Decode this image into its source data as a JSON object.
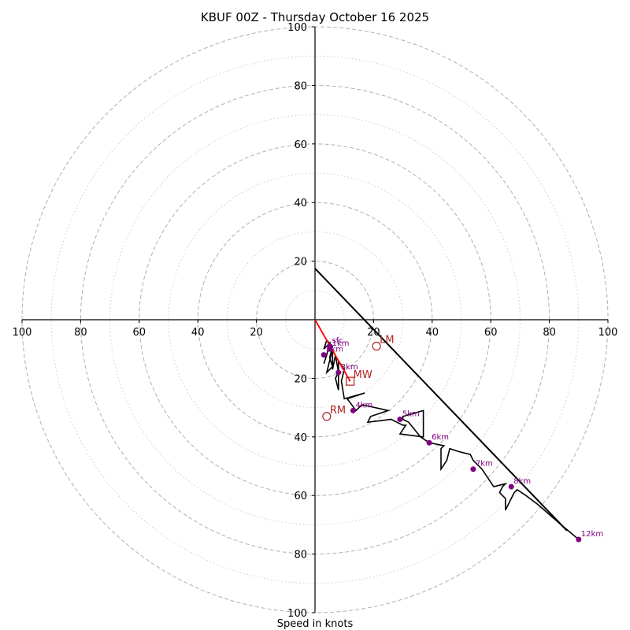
{
  "chart_data": {
    "type": "line",
    "title": "KBUF 00Z - Thursday October 16 2025",
    "xlabel": "Speed in knots",
    "ylabel": "",
    "xlim": [
      -100,
      100
    ],
    "ylim": [
      -100,
      100
    ],
    "units": "knots",
    "colors": {
      "hodograph": "#000000",
      "shear_vector": "#ff0000",
      "storm_motion": "#b22222",
      "height_marker": "#800080",
      "ring_major": "#b0b0b0",
      "ring_minor": "#cccccc",
      "axis": "#000000"
    },
    "rings": {
      "major": [
        20,
        40,
        60,
        80,
        100
      ],
      "minor": [
        10,
        30,
        50,
        70,
        90
      ]
    },
    "axis_ticks": {
      "left": [
        "100",
        "80",
        "60",
        "40",
        "20"
      ],
      "right": [
        "20",
        "40",
        "60",
        "80",
        "100"
      ],
      "top": [
        "100",
        "80",
        "60",
        "40",
        "20"
      ],
      "bottom": [
        "20",
        "40",
        "60",
        "80",
        "100"
      ],
      "left_values": [
        -100,
        -80,
        -60,
        -40,
        -20
      ],
      "right_values": [
        20,
        40,
        60,
        80,
        100
      ],
      "top_values": [
        100,
        80,
        60,
        40,
        20
      ],
      "bottom_values": [
        -20,
        -40,
        -60,
        -80,
        -100
      ]
    },
    "series": [
      {
        "name": "hodograph trace",
        "u": [
          3,
          4,
          5,
          3,
          4,
          6,
          5,
          6,
          4,
          5,
          6,
          6,
          7,
          8,
          7,
          8,
          8,
          10,
          9,
          10,
          17,
          11,
          14,
          16,
          25,
          19,
          18,
          26,
          30,
          31,
          29,
          37,
          37,
          30,
          30,
          32,
          36,
          39,
          44,
          43,
          43,
          45,
          46,
          49,
          53,
          54,
          57,
          59,
          61,
          65,
          64,
          63,
          65,
          65,
          68,
          69,
          72,
          76,
          84,
          90
        ],
        "v": [
          -15,
          -12,
          -8,
          -10,
          -7,
          -9,
          -13,
          -16,
          -18,
          -14,
          -10,
          -17,
          -12,
          -18,
          -20,
          -24,
          -14,
          -17,
          -21,
          -27,
          -25,
          -27,
          -31,
          -29,
          -31,
          -33,
          -35,
          -34,
          -36,
          -36,
          -39,
          -40,
          -31,
          -33,
          -34,
          -35,
          -40,
          -42,
          -43,
          -44,
          -51,
          -48,
          -44,
          -45,
          -46,
          -48,
          -51,
          -54,
          -57,
          -56,
          -57,
          -59,
          -61,
          -65,
          -59,
          -58,
          -60,
          -63,
          -70,
          -75
        ]
      }
    ],
    "height_markers": [
      {
        "label": "sfc",
        "u": 5,
        "v": -9
      },
      {
        "label": "1km",
        "u": 5,
        "v": -10
      },
      {
        "label": "2km",
        "u": 3,
        "v": -12
      },
      {
        "label": "3km",
        "u": 8,
        "v": -18
      },
      {
        "label": "4km",
        "u": 13,
        "v": -31
      },
      {
        "label": "5km",
        "u": 29,
        "v": -34
      },
      {
        "label": "6km",
        "u": 39,
        "v": -42
      },
      {
        "label": "7km",
        "u": 54,
        "v": -51
      },
      {
        "label": "8km",
        "u": 67,
        "v": -57
      },
      {
        "label": "12km",
        "u": 90,
        "v": -75
      }
    ],
    "shear_vector": {
      "from": [
        0,
        0
      ],
      "to": [
        12,
        -21
      ]
    },
    "storm_motion": [
      {
        "label": "LM",
        "u": 21,
        "v": -9,
        "marker": "circle"
      },
      {
        "label": "MW",
        "u": 12,
        "v": -21,
        "marker": "square"
      },
      {
        "label": "RM",
        "u": 4,
        "v": -33,
        "marker": "circle"
      }
    ],
    "helicity_line": {
      "from": [
        0,
        17.5
      ],
      "to": [
        86,
        -72
      ]
    }
  }
}
